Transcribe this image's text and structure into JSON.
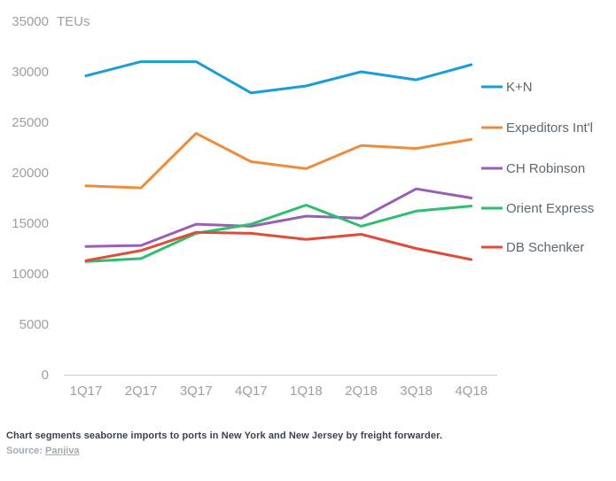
{
  "chart_data": {
    "type": "line",
    "title": "",
    "unit_label": "TEUs",
    "categories": [
      "1Q17",
      "2Q17",
      "3Q17",
      "4Q17",
      "1Q18",
      "2Q18",
      "3Q18",
      "4Q18"
    ],
    "yticks": [
      0,
      5000,
      10000,
      15000,
      20000,
      25000,
      30000,
      35000
    ],
    "ylim": [
      0,
      35000
    ],
    "grid": false,
    "legend_position": "right",
    "series": [
      {
        "name": "K+N",
        "color": "#1a9cd8",
        "values": [
          29600,
          31000,
          31000,
          27900,
          28600,
          30000,
          29200,
          30700
        ]
      },
      {
        "name": "Expeditors Int'l",
        "color": "#ee8c3e",
        "values": [
          18700,
          18500,
          23900,
          21100,
          20400,
          22700,
          22400,
          23300
        ]
      },
      {
        "name": "CH Robinson",
        "color": "#9a5fb5",
        "values": [
          12700,
          12800,
          14900,
          14700,
          15700,
          15500,
          18400,
          17500
        ]
      },
      {
        "name": "Orient Express",
        "color": "#2dbe70",
        "values": [
          11200,
          11500,
          14000,
          14900,
          16800,
          14700,
          16200,
          16700
        ]
      },
      {
        "name": "DB Schenker",
        "color": "#e04b3a",
        "values": [
          11300,
          12300,
          14100,
          14000,
          13400,
          13900,
          12500,
          11400
        ]
      }
    ]
  },
  "caption": {
    "text": "Chart segments seaborne imports to ports in New York and New Jersey by freight forwarder."
  },
  "source": {
    "prefix": "Source:",
    "link_label": "Panjiva"
  },
  "colors": {
    "axis_line": "#cccccc",
    "axis_text": "#9b9ea3",
    "legend_text": "#5d6870"
  }
}
